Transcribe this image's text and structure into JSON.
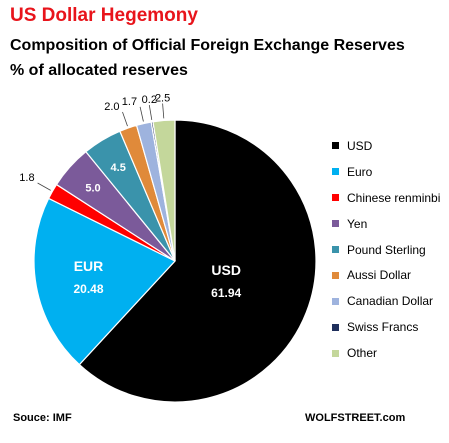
{
  "header": {
    "title": "US Dollar Hegemony",
    "subtitle_1": "Composition of Official Foreign Exchange Reserves",
    "subtitle_2": "% of allocated reserves"
  },
  "footer": {
    "source": "Souce: IMF",
    "brand": "WOLFSTREET.com"
  },
  "chart_data": {
    "type": "pie",
    "title": "Composition of Official Foreign Exchange Reserves",
    "unit": "% of allocated reserves",
    "legend_position": "right",
    "slices": [
      {
        "name": "USD",
        "value": 61.94,
        "label": "61.94",
        "inner_name": "USD",
        "color": "#000000"
      },
      {
        "name": "Euro",
        "value": 20.48,
        "label": "20.48",
        "inner_name": "EUR",
        "color": "#00b0f0"
      },
      {
        "name": "Chinese renminbi",
        "value": 1.8,
        "label": "1.8",
        "color": "#ff0000"
      },
      {
        "name": "Yen",
        "value": 5.0,
        "label": "5.0",
        "color": "#7b5a9a"
      },
      {
        "name": "Pound Sterling",
        "value": 4.5,
        "label": "4.5",
        "color": "#3a93ab"
      },
      {
        "name": "Aussi Dollar",
        "value": 2.0,
        "label": "2.0",
        "color": "#e08a3a"
      },
      {
        "name": "Canadian Dollar",
        "value": 1.7,
        "label": "1.7",
        "color": "#9eb3de"
      },
      {
        "name": "Swiss Francs",
        "value": 0.2,
        "label": "0.2",
        "color": "#1f2f5c"
      },
      {
        "name": "Other",
        "value": 2.5,
        "label": "2.5",
        "color": "#c4d79b"
      }
    ]
  }
}
